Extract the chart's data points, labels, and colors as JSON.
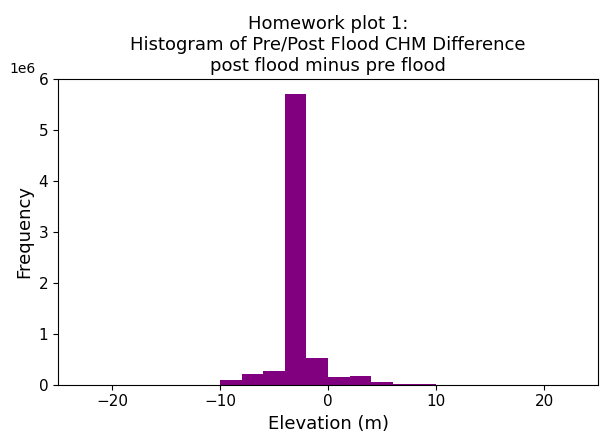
{
  "title": "Homework plot 1:\nHistogram of Pre/Post Flood CHM Difference\npost flood minus pre flood",
  "xlabel": "Elevation (m)",
  "ylabel": "Frequency",
  "bar_color": "#800080",
  "bin_edges": [
    -26,
    -24,
    -22,
    -20,
    -18,
    -16,
    -14,
    -12,
    -10,
    -8,
    -6,
    -4,
    -2,
    0,
    2,
    4,
    6,
    8,
    10,
    12,
    14,
    16,
    18,
    20,
    22,
    24,
    26
  ],
  "bin_counts": [
    0,
    0,
    0,
    0,
    0,
    0,
    0,
    3000,
    90000,
    220000,
    260000,
    5700000,
    530000,
    145000,
    170000,
    60000,
    18000,
    5000,
    0,
    0,
    0,
    0,
    0,
    0,
    0,
    0
  ],
  "xlim": [
    -25,
    25
  ],
  "ylim": [
    0,
    6000000
  ],
  "ytick_values": [
    0,
    1000000,
    2000000,
    3000000,
    4000000,
    5000000,
    6000000
  ],
  "xtick_values": [
    -20,
    -10,
    0,
    10,
    20
  ],
  "title_fontsize": 13,
  "axis_label_fontsize": 13,
  "tick_fontsize": 11
}
